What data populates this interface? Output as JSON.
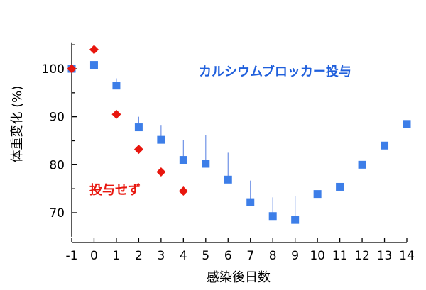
{
  "chart_data": {
    "type": "scatter",
    "xlabel": "感染後日数",
    "ylabel": "体重変化 (%)",
    "x_ticks": [
      -1,
      0,
      1,
      2,
      3,
      4,
      5,
      6,
      7,
      8,
      9,
      10,
      11,
      12,
      13,
      14
    ],
    "y_ticks": [
      70,
      80,
      90,
      100
    ],
    "xlim": [
      -1,
      14
    ],
    "ylim": [
      65,
      105.5
    ],
    "grid": false,
    "series": [
      {
        "name": "カルシウムブロッカー投与",
        "marker": "square",
        "color": "#3d7ee8",
        "label_color": "#1f5fdc",
        "x": [
          -1,
          0,
          1,
          2,
          3,
          4,
          5,
          6,
          7,
          8,
          9,
          10,
          11,
          12,
          13,
          14
        ],
        "y": [
          100,
          100.8,
          96.5,
          87.8,
          85.2,
          81,
          80.2,
          76.9,
          72.2,
          69.3,
          68.5,
          73.9,
          75.4,
          80,
          84,
          88.5
        ],
        "error_upper": [
          null,
          null,
          98,
          90,
          88.3,
          85.2,
          86.2,
          82.5,
          76.7,
          73.2,
          73.5,
          null,
          null,
          null,
          null,
          null
        ]
      },
      {
        "name": "投与せず",
        "marker": "diamond",
        "color": "#e8160e",
        "label_color": "#e8160e",
        "x": [
          -1,
          0,
          1,
          2,
          3,
          4
        ],
        "y": [
          100,
          104,
          90.5,
          83.2,
          78.5,
          74.5
        ]
      }
    ]
  }
}
